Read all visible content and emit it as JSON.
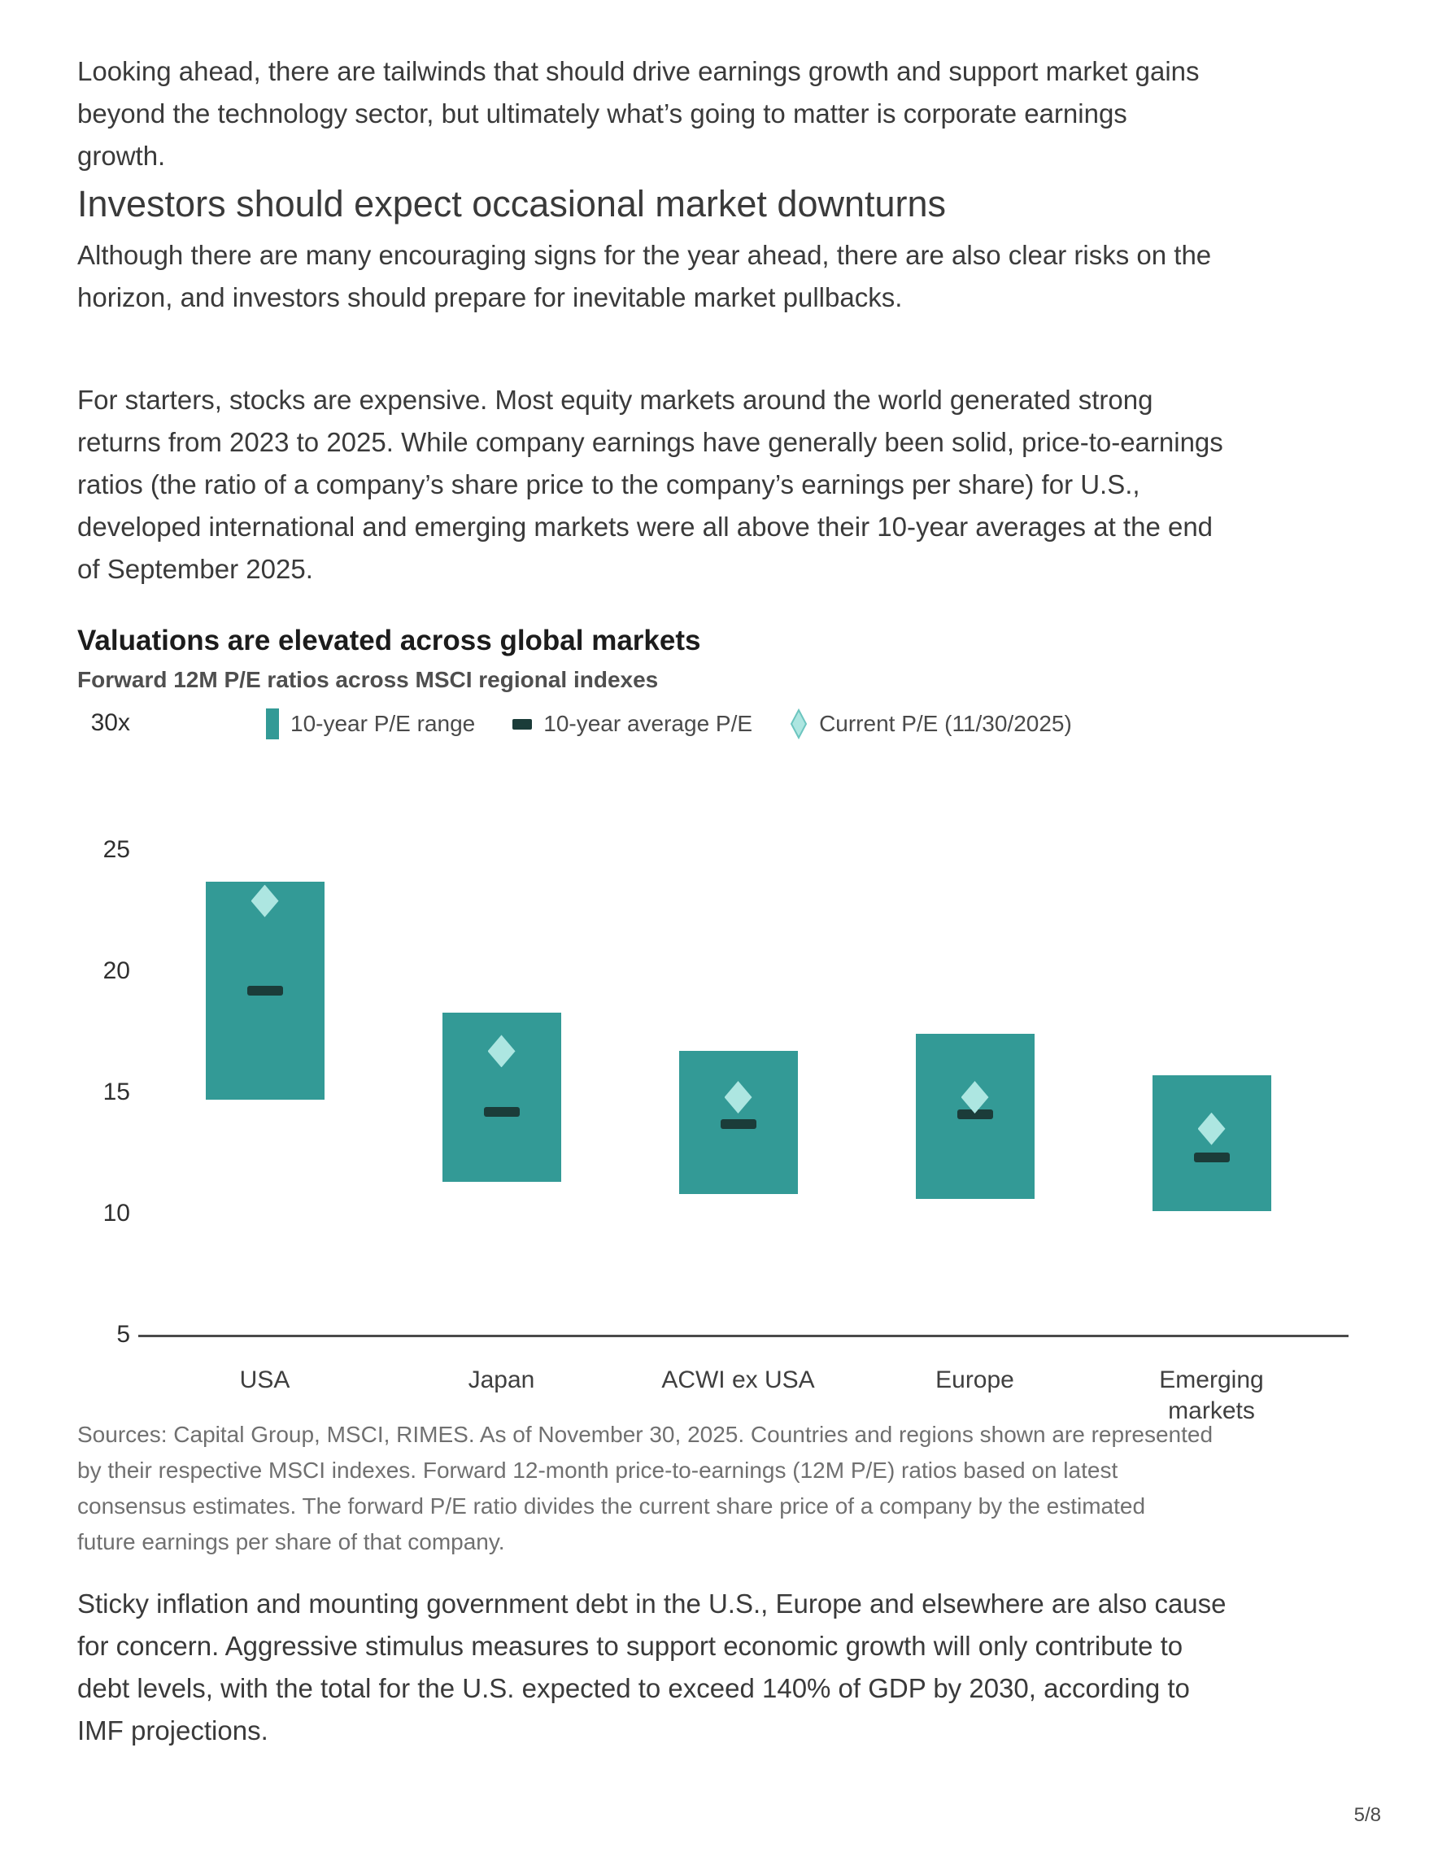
{
  "page": {
    "paragraph1": "Looking ahead, there are tailwinds that should drive earnings growth and support market gains\nbeyond the technology sector, but ultimately what’s going to matter is corporate earnings\ngrowth.",
    "heading": "Investors should expect occasional market downturns",
    "paragraph2": "Although there are many encouraging signs for the year ahead, there are also clear risks on the\nhorizon, and investors should prepare for inevitable market pullbacks.",
    "paragraph3": "For starters, stocks are expensive. Most equity markets around the world generated strong\nreturns from 2023 to 2025. While company earnings have generally been solid, price-to-earnings\nratios (the ratio of a company’s share price to the company’s earnings per share) for U.S.,\ndeveloped international and emerging markets were all above their 10-year averages at the end\nof September 2025.",
    "sources": "Sources: Capital Group, MSCI, RIMES. As of November 30, 2025. Countries and regions shown are represented\nby their respective MSCI indexes. Forward 12-month price-to-earnings (12M P/E) ratios based on latest\nconsensus estimates. The forward P/E ratio divides the current share price of a company by the estimated\nfuture earnings per share of that company.",
    "paragraph4": "Sticky inflation and mounting government debt in the U.S., Europe and elsewhere are also cause\nfor concern. Aggressive stimulus measures to support economic growth will only contribute to\ndebt levels, with the total for the U.S. expected to exceed 140% of GDP by 2030, according to\nIMF projections.",
    "page_number": "5/8"
  },
  "chart": {
    "legend": [
      {
        "label": "10-year P/E range"
      },
      {
        "label": "10-year average P/E"
      },
      {
        "label": "Current P/E (11/30/2025)"
      }
    ],
    "category_labels": [
      "USA",
      "Japan",
      "ACWI ex USA",
      "Europe",
      "Emerging\nmarkets"
    ],
    "colors": {
      "bar_range": "#339a96",
      "average_line": "#1b3c39",
      "current_diamond": "#ade6e1",
      "legend_diamond_outline": "#6cc5bf",
      "axis_line": "#4a4a4a"
    }
  },
  "chart_data": {
    "type": "bar",
    "subtype": "floating-range-with-markers",
    "title": "Valuations are elevated across global markets",
    "subtitle": "Forward 12M P/E ratios across MSCI regional indexes",
    "categories": [
      "USA",
      "Japan",
      "ACWI ex USA",
      "Europe",
      "Emerging markets"
    ],
    "series": [
      {
        "name": "10-year P/E range",
        "low": [
          14.7,
          11.3,
          10.8,
          10.6,
          10.1
        ],
        "high": [
          23.7,
          18.3,
          16.7,
          17.4,
          15.7
        ]
      },
      {
        "name": "10-year average P/E",
        "values": [
          19.2,
          14.2,
          13.7,
          14.1,
          12.3
        ]
      },
      {
        "name": "Current P/E (11/30/2025)",
        "values": [
          22.9,
          16.7,
          14.8,
          14.8,
          13.5
        ]
      }
    ],
    "xlabel": "",
    "ylabel": "",
    "ylim": [
      5,
      30
    ],
    "yticks": [
      5,
      10,
      15,
      20,
      25,
      30
    ],
    "ytick_labels": [
      "5",
      "10",
      "15",
      "20",
      "25",
      "30x"
    ],
    "grid": false,
    "legend_position": "top"
  }
}
